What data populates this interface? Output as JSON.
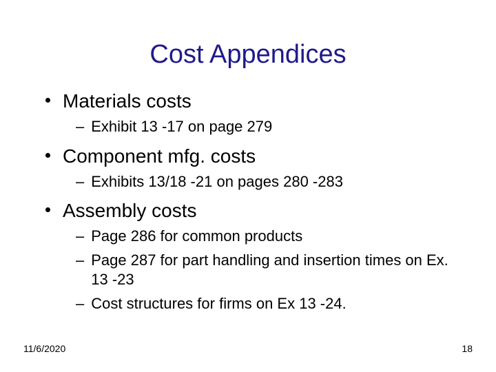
{
  "title": {
    "text": "Cost Appendices",
    "color": "#1f1a8a",
    "fontsize": 38
  },
  "body": {
    "l1_fontsize": 28,
    "l2_fontsize": 22,
    "text_color": "#000000",
    "groups": [
      {
        "heading": "Materials costs",
        "subs": [
          "Exhibit 13 -17 on page 279"
        ]
      },
      {
        "heading": "Component mfg. costs",
        "subs": [
          "Exhibits 13/18 -21 on pages 280 -283"
        ]
      },
      {
        "heading": "Assembly costs",
        "subs": [
          "Page 286 for common products",
          "Page 287 for part handling and insertion times on Ex. 13 -23",
          "Cost structures for firms on Ex 13 -24."
        ]
      }
    ]
  },
  "footer": {
    "date": "11/6/2020",
    "page": "18",
    "fontsize": 14,
    "color": "#000000"
  }
}
